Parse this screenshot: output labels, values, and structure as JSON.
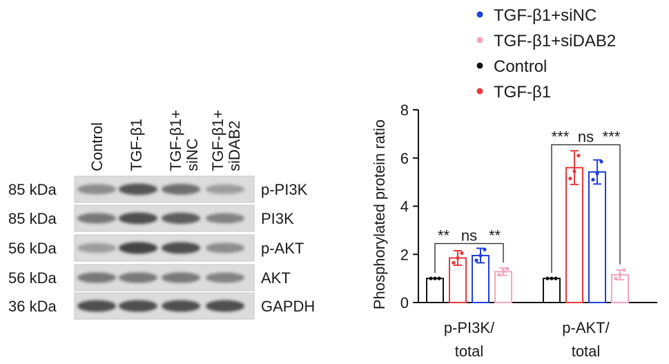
{
  "blot": {
    "lanes": [
      {
        "lines": [
          "Control"
        ]
      },
      {
        "lines": [
          "TGF-β1"
        ]
      },
      {
        "lines": [
          "TGF-β1+",
          "siNC"
        ]
      },
      {
        "lines": [
          "TGF-β1+",
          "siDAB2"
        ]
      }
    ],
    "rows": [
      {
        "size": "85 kDa",
        "protein": "p-PI3K"
      },
      {
        "size": "85 kDa",
        "protein": "PI3K"
      },
      {
        "size": "56 kDa",
        "protein": "p-AKT"
      },
      {
        "size": "56 kDa",
        "protein": "AKT"
      },
      {
        "size": "36 kDa",
        "protein": "GAPDH"
      }
    ]
  },
  "chart_data": {
    "type": "bar",
    "ylabel": "Phosphorylated protein ratio",
    "ylim": [
      0,
      8
    ],
    "yticks": [
      "0",
      "2",
      "4",
      "6",
      "8"
    ],
    "categories": [
      [
        "p-PI3K/",
        "total"
      ],
      [
        "p-AKT/",
        "total"
      ]
    ],
    "series": [
      {
        "name": "Control",
        "color": "#111111",
        "values": [
          1.0,
          1.0
        ],
        "errors": [
          0.0,
          0.0
        ],
        "points": [
          [
            1.0,
            1.0,
            1.0
          ],
          [
            1.0,
            1.0,
            1.0
          ]
        ]
      },
      {
        "name": "TGF-β1",
        "color": "#e8383d",
        "values": [
          1.85,
          5.6
        ],
        "errors": [
          0.3,
          0.7
        ],
        "points": [
          [
            1.65,
            1.85,
            2.05
          ],
          [
            5.15,
            5.45,
            6.1
          ]
        ]
      },
      {
        "name": "TGF-β1+siNC",
        "color": "#1f3fe0",
        "values": [
          1.95,
          5.42
        ],
        "errors": [
          0.3,
          0.5
        ],
        "points": [
          [
            1.75,
            1.95,
            2.2
          ],
          [
            5.1,
            5.35,
            5.85
          ]
        ]
      },
      {
        "name": "TGF-β1+siDAB2",
        "color": "#f2a5bd",
        "values": [
          1.28,
          1.15
        ],
        "errors": [
          0.15,
          0.2
        ],
        "points": [
          [
            1.15,
            1.3,
            1.4
          ],
          [
            1.0,
            1.15,
            1.35
          ]
        ]
      }
    ],
    "significance": [
      {
        "group": 0,
        "labels": [
          "**",
          "ns",
          "**"
        ]
      },
      {
        "group": 1,
        "labels": [
          "***",
          "ns",
          "***"
        ]
      }
    ],
    "legend": {
      "placement": "top",
      "order": [
        "TGF-β1+siNC",
        "TGF-β1+siDAB2",
        "Control",
        "TGF-β1"
      ]
    }
  }
}
